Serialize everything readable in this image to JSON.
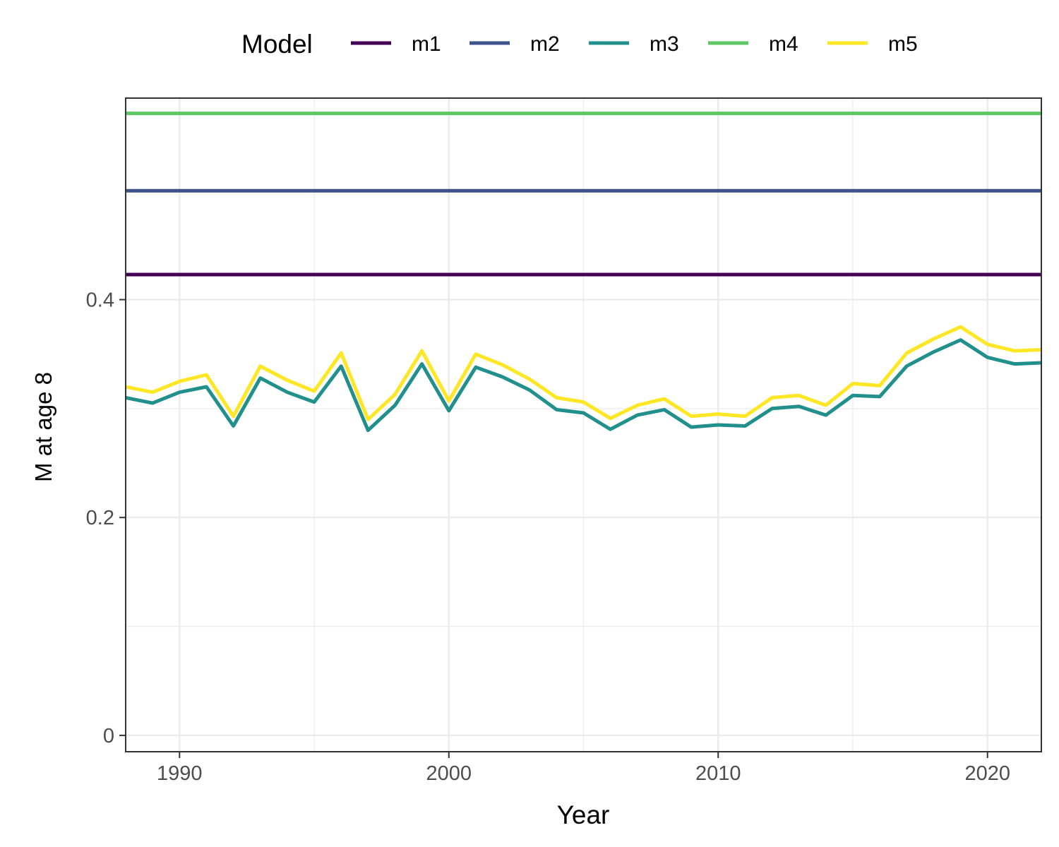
{
  "chart_data": {
    "type": "line",
    "xlabel": "Year",
    "ylabel": "M at age 8",
    "legend_title": "Model",
    "legend_position": "top",
    "xlim": [
      1988,
      2022
    ],
    "ylim": [
      -0.015,
      0.585
    ],
    "xticks": [
      1990,
      2000,
      2010,
      2020
    ],
    "xtick_labels": [
      "1990",
      "2000",
      "2010",
      "2020"
    ],
    "yticks": [
      0,
      0.2,
      0.4
    ],
    "ytick_labels": [
      "0",
      "0.2",
      "0.4"
    ],
    "grid": true,
    "x": [
      1988,
      1989,
      1990,
      1991,
      1992,
      1993,
      1994,
      1995,
      1996,
      1997,
      1998,
      1999,
      2000,
      2001,
      2002,
      2003,
      2004,
      2005,
      2006,
      2007,
      2008,
      2009,
      2010,
      2011,
      2012,
      2013,
      2014,
      2015,
      2016,
      2017,
      2018,
      2019,
      2020,
      2021,
      2022
    ],
    "series": [
      {
        "name": "m1",
        "color": "#440154",
        "values": [
          0.423,
          0.423,
          0.423,
          0.423,
          0.423,
          0.423,
          0.423,
          0.423,
          0.423,
          0.423,
          0.423,
          0.423,
          0.423,
          0.423,
          0.423,
          0.423,
          0.423,
          0.423,
          0.423,
          0.423,
          0.423,
          0.423,
          0.423,
          0.423,
          0.423,
          0.423,
          0.423,
          0.423,
          0.423,
          0.423,
          0.423,
          0.423,
          0.423,
          0.423,
          0.423
        ]
      },
      {
        "name": "m2",
        "color": "#3b528b",
        "values": [
          0.5,
          0.5,
          0.5,
          0.5,
          0.5,
          0.5,
          0.5,
          0.5,
          0.5,
          0.5,
          0.5,
          0.5,
          0.5,
          0.5,
          0.5,
          0.5,
          0.5,
          0.5,
          0.5,
          0.5,
          0.5,
          0.5,
          0.5,
          0.5,
          0.5,
          0.5,
          0.5,
          0.5,
          0.5,
          0.5,
          0.5,
          0.5,
          0.5,
          0.5,
          0.5
        ]
      },
      {
        "name": "m3",
        "color": "#21908c",
        "values": [
          0.31,
          0.305,
          0.315,
          0.32,
          0.284,
          0.328,
          0.315,
          0.306,
          0.339,
          0.28,
          0.303,
          0.341,
          0.298,
          0.338,
          0.329,
          0.317,
          0.299,
          0.296,
          0.281,
          0.294,
          0.299,
          0.283,
          0.285,
          0.284,
          0.3,
          0.302,
          0.294,
          0.312,
          0.311,
          0.339,
          0.352,
          0.363,
          0.347,
          0.341,
          0.342
        ]
      },
      {
        "name": "m4",
        "color": "#5dc863",
        "values": [
          0.571,
          0.571,
          0.571,
          0.571,
          0.571,
          0.571,
          0.571,
          0.571,
          0.571,
          0.571,
          0.571,
          0.571,
          0.571,
          0.571,
          0.571,
          0.571,
          0.571,
          0.571,
          0.571,
          0.571,
          0.571,
          0.571,
          0.571,
          0.571,
          0.571,
          0.571,
          0.571,
          0.571,
          0.571,
          0.571,
          0.571,
          0.571,
          0.571,
          0.571,
          0.571
        ]
      },
      {
        "name": "m5",
        "color": "#fde725",
        "values": [
          0.32,
          0.315,
          0.325,
          0.331,
          0.293,
          0.339,
          0.326,
          0.316,
          0.351,
          0.29,
          0.313,
          0.353,
          0.307,
          0.35,
          0.34,
          0.327,
          0.31,
          0.306,
          0.291,
          0.303,
          0.309,
          0.293,
          0.295,
          0.293,
          0.31,
          0.312,
          0.303,
          0.323,
          0.321,
          0.351,
          0.364,
          0.375,
          0.359,
          0.353,
          0.354
        ]
      }
    ]
  }
}
